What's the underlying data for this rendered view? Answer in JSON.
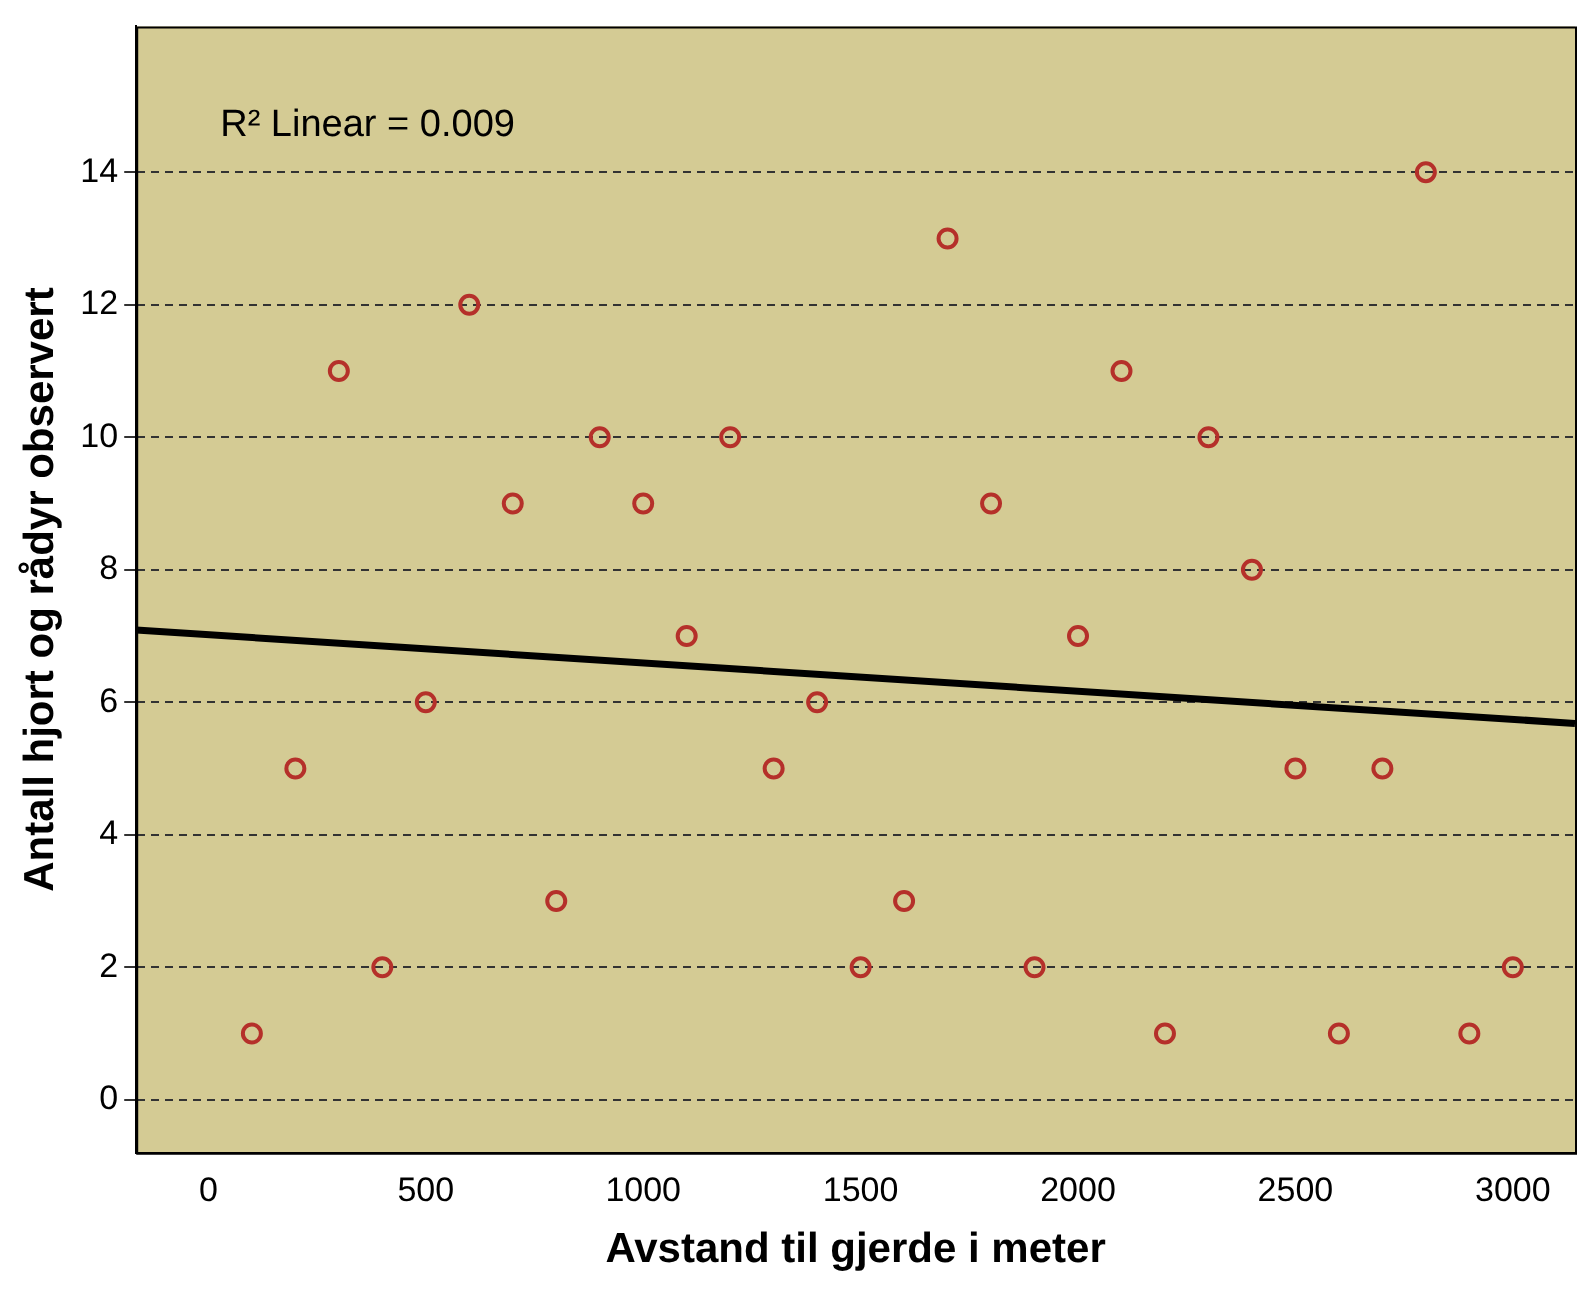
{
  "chart_data": {
    "type": "scatter",
    "xlabel": "Avstand til gjerde i meter",
    "ylabel": "Antall hjort og rådyr observert",
    "annotations": [
      "R² Linear = 0.009"
    ],
    "xlim": [
      -166,
      3143
    ],
    "xticks": [
      0,
      500,
      1000,
      1500,
      2000,
      2500,
      3000
    ],
    "ylim": [
      -0.8,
      16.2
    ],
    "yticks": [
      0,
      2,
      4,
      6,
      8,
      10,
      12,
      14
    ],
    "grid": "y",
    "legend": false,
    "marker": "circle",
    "series": [
      {
        "color": "#b5302a",
        "x": [
          100,
          200,
          300,
          400,
          500,
          600,
          700,
          800,
          900,
          1000,
          1100,
          1200,
          1300,
          1400,
          1500,
          1600,
          1700,
          1800,
          1900,
          2000,
          2100,
          2200,
          2300,
          2400,
          2500,
          2600,
          2700,
          2800,
          2900,
          3000
        ],
        "values": [
          1,
          5,
          11,
          2,
          6,
          12,
          9,
          3,
          10,
          9,
          7,
          10,
          5,
          6,
          2,
          3,
          13,
          9,
          2,
          7,
          11,
          1,
          10,
          8,
          5,
          1,
          5,
          14,
          1,
          2
        ]
      },
      {
        "type": "line",
        "color": "#000000",
        "line_style": "solid",
        "marker": "none",
        "x": [
          -166,
          3143
        ],
        "values": [
          7.09,
          5.68
        ]
      }
    ]
  }
}
